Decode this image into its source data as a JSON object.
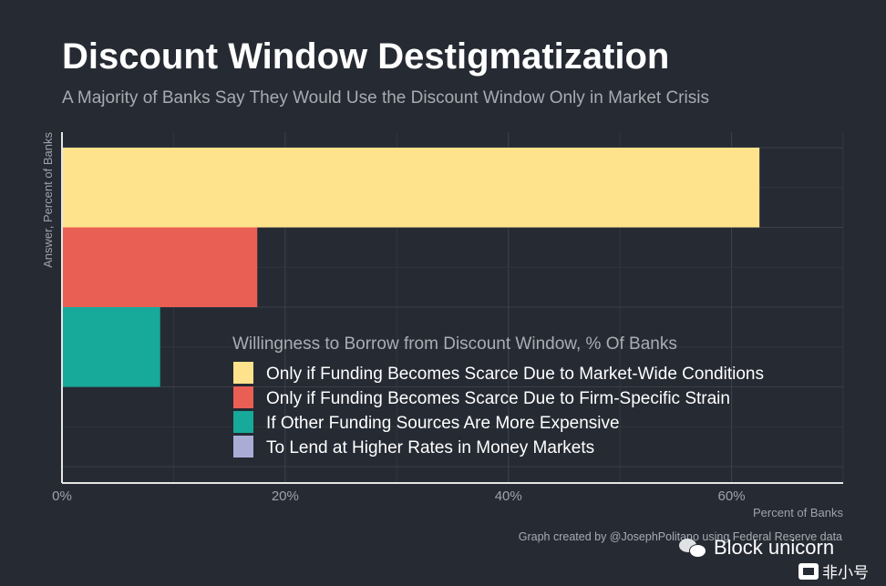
{
  "header": {
    "title": "Discount Window Destigmatization",
    "subtitle": "A Majority of Banks Say They Would Use the Discount Window Only in Market Crisis"
  },
  "chart_data": {
    "type": "bar",
    "orientation": "horizontal",
    "title": "Discount Window Destigmatization",
    "subtitle": "A Majority of Banks Say They Would Use the Discount Window Only in Market Crisis",
    "xlabel": "Percent of Banks",
    "ylabel": "Answer, Percent of Banks",
    "xlim": [
      0,
      70
    ],
    "x_ticks": [
      0,
      20,
      40,
      60
    ],
    "x_tick_labels": [
      "0%",
      "20%",
      "40%",
      "60%"
    ],
    "grid": true,
    "legend_title": "Willingness to Borrow from Discount Window, % Of Banks",
    "legend_position": "bottom-right",
    "categories": [
      "Only if Funding Becomes Scarce Due to Market-Wide Conditions",
      "Only if Funding Becomes Scarce Due to Firm-Specific Strain",
      "If Other Funding Sources Are More Expensive",
      "To Lend at Higher Rates in Money Markets"
    ],
    "values": [
      62.5,
      17.5,
      8.8,
      0
    ],
    "colors": [
      "#ffe38c",
      "#ea5f54",
      "#17a99a",
      "#a9add6"
    ]
  },
  "footer": {
    "caption": "Graph created by @JosephPolitano using Federal Reserve data",
    "watermark": "Block unicorn",
    "watermark2": "非小号"
  }
}
